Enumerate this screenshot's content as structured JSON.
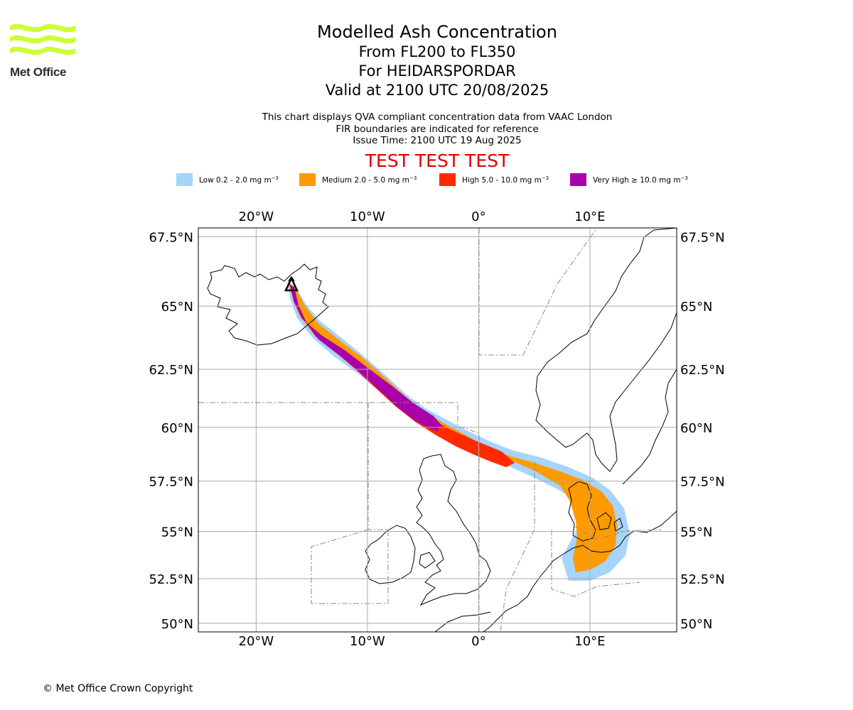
{
  "logo": {
    "text": "Met Office",
    "color": "#ccff33"
  },
  "title": {
    "main": "Modelled Ash Concentration",
    "flight_levels": "From FL200 to FL350",
    "volcano": "For HEIDARSPORDAR",
    "valid": "Valid at 2100 UTC 20/08/2025"
  },
  "notes": [
    "This chart displays QVA compliant concentration data from VAAC London",
    "FIR boundaries are indicated for reference",
    "Issue Time: 2100 UTC 19 Aug 2025"
  ],
  "banner": "TEST TEST TEST",
  "legend": [
    {
      "label": "Low 0.2 - 2.0 mg m",
      "color": "#a6d4fb"
    },
    {
      "label": "Medium 2.0 - 5.0 mg m",
      "color": "#ff9a00"
    },
    {
      "label": "High 5.0 - 10.0 mg m",
      "color": "#ff2a00"
    },
    {
      "label": "Very High ≥ 10.0 mg m",
      "color": "#aa00aa"
    }
  ],
  "legend_unit_exponent": "−3",
  "map": {
    "lon_ticks": [
      "20°W",
      "10°W",
      "0°",
      "10°E"
    ],
    "lat_ticks": [
      "67.5°N",
      "65°N",
      "62.5°N",
      "60°N",
      "57.5°N",
      "55°N",
      "52.5°N",
      "50°N"
    ],
    "lon_range": [
      -25.2,
      17.8
    ],
    "lat_range": [
      49.5,
      67.8
    ],
    "volcano_icon": "volcano-triangle-icon"
  },
  "copyright": "© Met Office Crown Copyright"
}
